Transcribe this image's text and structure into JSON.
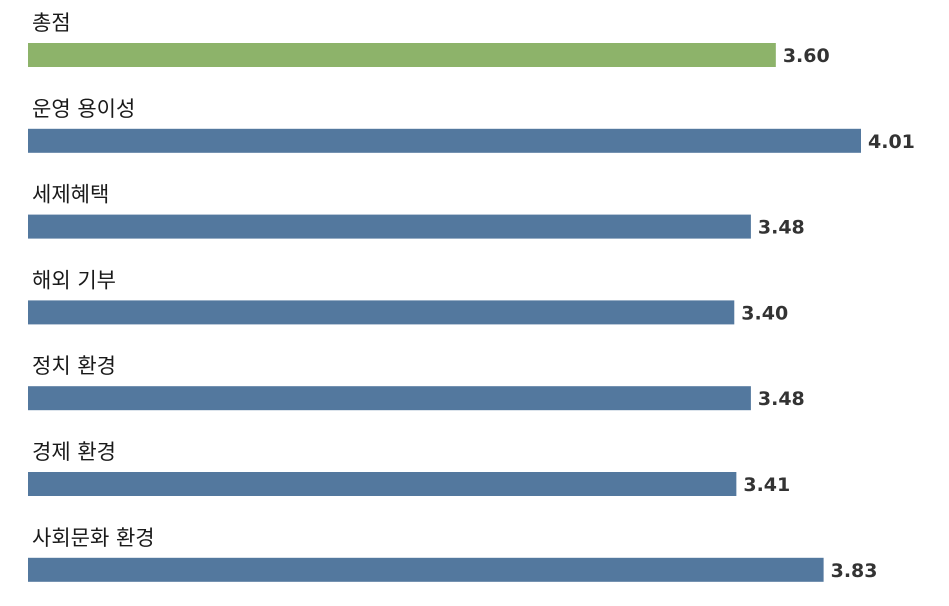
{
  "chart_data": {
    "type": "bar",
    "orientation": "horizontal",
    "categories": [
      "총점",
      "운영 용이성",
      "세제혜택",
      "해외 기부",
      "정치 환경",
      "경제 환경",
      "사회문화 환경"
    ],
    "values": [
      3.6,
      4.01,
      3.48,
      3.4,
      3.48,
      3.41,
      3.83
    ],
    "value_labels": [
      "3.60",
      "4.01",
      "3.48",
      "3.40",
      "3.48",
      "3.41",
      "3.83"
    ],
    "title": "",
    "xlabel": "",
    "ylabel": "",
    "xlim": [
      0,
      4.01
    ],
    "grid": false,
    "legend": "none",
    "colors": {
      "highlight": "#8db36a",
      "bar": "#53789e",
      "value_text": "#333333",
      "label_text": "#1a1a1a"
    }
  }
}
